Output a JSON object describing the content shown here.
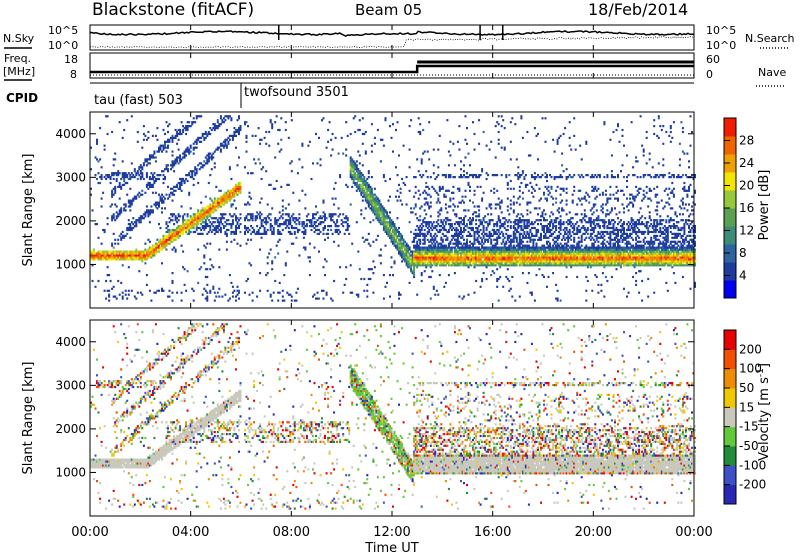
{
  "header": {
    "station": "Blackstone (fitACF)",
    "beam": "Beam 05",
    "date": "18/Feb/2014"
  },
  "labels": {
    "nsky": "N.Sky",
    "nsearch": "N.Search",
    "freq_line1": "Freq.",
    "freq_line2": "[MHz]",
    "nave": "Nave",
    "cpid": "CPID",
    "xlabel": "Time UT",
    "ylabel": "Slant Range [km]",
    "power_cb": "Power [dB]",
    "velocity_cb": "Velocity [m s",
    "velocity_cb_sup": "-1",
    "velocity_cb_end": "]"
  },
  "noise_panel": {
    "left_ticks": [
      "10^5",
      "10^0"
    ],
    "right_ticks": [
      "10^5",
      "10^0"
    ]
  },
  "freq_panel": {
    "left_ticks": [
      "18",
      "8"
    ],
    "right_ticks": [
      "60",
      "0"
    ]
  },
  "cpid_segments": [
    {
      "label": "tau (fast) 503",
      "start_hour": 0
    },
    {
      "label": "twofsound 3501",
      "start_hour": 6
    }
  ],
  "chart_data": {
    "type": "heatmap",
    "x_ticks": [
      "00:00",
      "04:00",
      "08:00",
      "12:00",
      "16:00",
      "20:00",
      "00:00"
    ],
    "x_range_hours": [
      0,
      24
    ],
    "y_ticks": [
      1000,
      2000,
      3000,
      4000
    ],
    "y_range_km": [
      0,
      4500
    ],
    "panels": [
      {
        "name": "Power [dB]",
        "colorbar_ticks": [
          "28",
          "24",
          "20",
          "16",
          "12",
          "8",
          "4"
        ],
        "colors": [
          "#0000f0",
          "#1e3ca0",
          "#2d64a0",
          "#3c8c78",
          "#5aa050",
          "#96c83c",
          "#f0e600",
          "#f0a000",
          "#f06400",
          "#f01e00"
        ],
        "color_range": [
          0,
          32
        ]
      },
      {
        "name": "Velocity [m s-1]",
        "colorbar_ticks": [
          "200",
          "100",
          "50",
          "15",
          "-15",
          "-50",
          "-100",
          "-200"
        ],
        "colors": [
          "#2828b4",
          "#3c50c8",
          "#1e8c3c",
          "#64c83c",
          "#c8c8bc",
          "#f0c800",
          "#f08c00",
          "#f05000",
          "#e60000"
        ],
        "color_range": [
          -250,
          250
        ]
      }
    ],
    "features": [
      {
        "description_hours": [
          0,
          3.5
        ],
        "range_km": [
          1000,
          1500
        ]
      },
      {
        "description_hours": [
          3.5,
          6
        ],
        "range_km": [
          1300,
          3700
        ]
      },
      {
        "description_hours": [
          10.5,
          12.8
        ],
        "range_km": [
          1000,
          3100
        ]
      },
      {
        "description_hours": [
          12.8,
          24
        ],
        "range_km": [
          800,
          1600
        ]
      }
    ],
    "grid": false
  }
}
